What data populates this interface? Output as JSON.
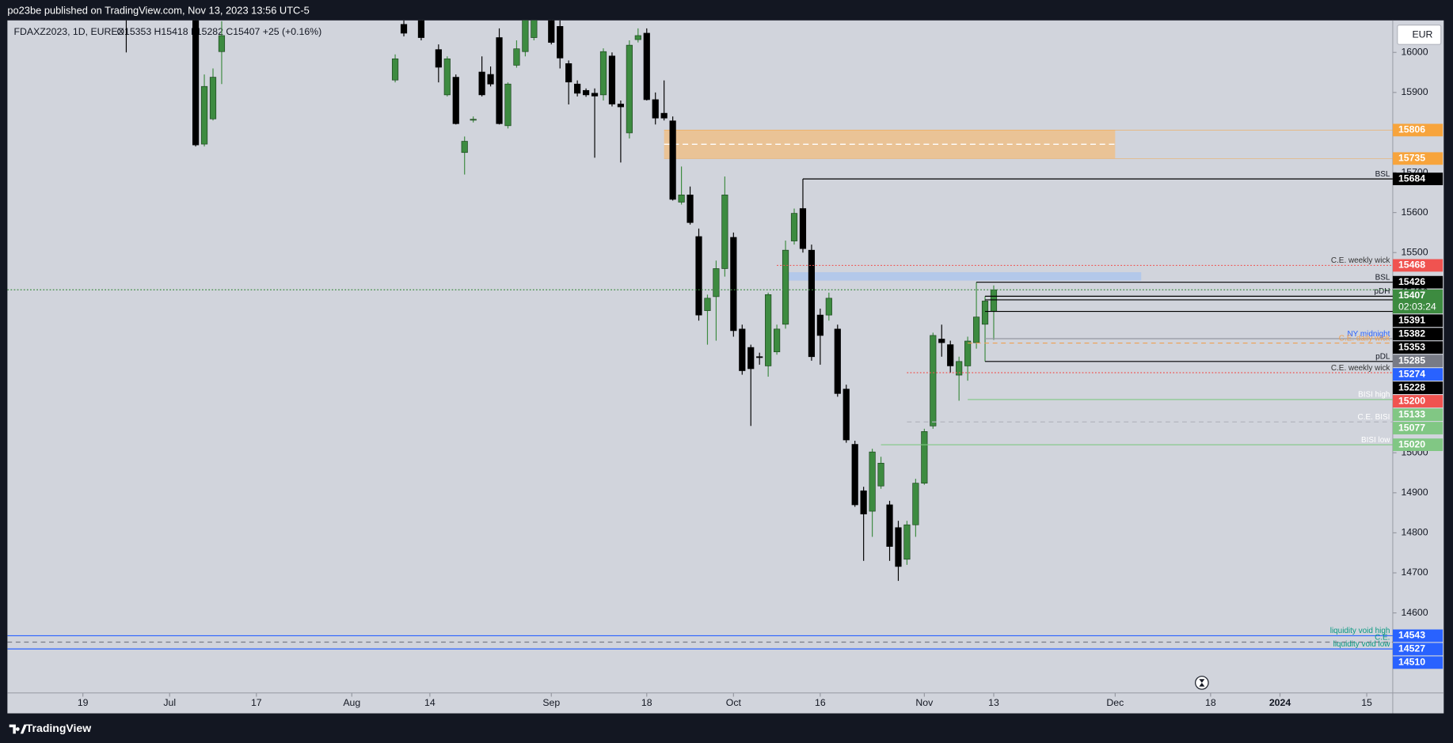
{
  "header": "po23be published on TradingView.com, Nov 13, 2023 13:56 UTC-5",
  "footer": "TradingView",
  "chart_data": {
    "type": "candlestick",
    "legend": {
      "symbol": "FDAXZ2023, 1D, EUREX",
      "ohlc": "O15353 H15418 L15282 C15407 +25 (+0.16%)"
    },
    "currency": "EUR",
    "up_color": "#3d8b40",
    "down_color": "#000000",
    "ylim": [
      14400,
      16080
    ],
    "yticks": [
      14600,
      14700,
      14800,
      14900,
      15000,
      15100,
      15200,
      15300,
      15400,
      15500,
      15600,
      15700,
      15800,
      15900,
      16000
    ],
    "xlim": [
      -13.7,
      146
    ],
    "xticks": [
      {
        "value": -5,
        "label": "19"
      },
      {
        "value": 5,
        "label": "Jul"
      },
      {
        "value": 15,
        "label": "17"
      },
      {
        "value": 26,
        "label": "Aug"
      },
      {
        "value": 35,
        "label": "14"
      },
      {
        "value": 49,
        "label": "Sep"
      },
      {
        "value": 60,
        "label": "18"
      },
      {
        "value": 70,
        "label": "Oct"
      },
      {
        "value": 80,
        "label": "16"
      },
      {
        "value": 92,
        "label": "Nov"
      },
      {
        "value": 100,
        "label": "13"
      },
      {
        "value": 114,
        "label": "Dec"
      },
      {
        "value": 125,
        "label": "18"
      },
      {
        "value": 133,
        "label": "2024"
      },
      {
        "value": 143,
        "label": "15"
      }
    ],
    "candles": {
      "x": [
        0,
        8,
        9,
        10,
        11,
        31,
        32,
        34,
        36,
        37,
        38,
        39,
        40,
        41,
        42,
        43,
        44,
        45,
        46,
        47,
        49,
        50,
        51,
        52,
        53,
        54,
        55,
        56,
        57,
        58,
        59,
        60,
        61,
        62,
        63,
        64,
        65,
        66,
        67,
        68,
        69,
        70,
        71,
        72,
        73,
        74,
        75,
        76,
        77,
        78,
        79,
        80,
        81,
        82,
        83,
        84,
        85,
        86,
        87,
        88,
        89,
        90,
        91,
        92,
        93,
        94,
        95,
        96,
        97,
        98,
        99,
        100
      ],
      "open": [
        16120,
        16080,
        15771,
        15834,
        16002,
        15931,
        16070,
        16090,
        16007,
        15894,
        15938,
        15750,
        15831,
        15951,
        15945,
        16037,
        15817,
        15968,
        16002,
        16037,
        16090,
        16065,
        15972,
        15921,
        15905,
        15898,
        15894,
        15991,
        15871,
        15799,
        16032,
        16048,
        15882,
        15848,
        15829,
        15626,
        15644,
        15540,
        15355,
        15390,
        15460,
        15538,
        15309,
        15263,
        15240,
        15217,
        15252,
        15321,
        15529,
        15610,
        15506,
        15344,
        15344,
        15309,
        15159,
        15021,
        14905,
        14854,
        14917,
        14870,
        14813,
        14734,
        14820,
        14924,
        15067,
        15284,
        15270,
        15194,
        15217,
        15275,
        15321,
        15353
      ],
      "high": [
        16180,
        16100,
        15945,
        15960,
        16078,
        15995,
        16080,
        16100,
        16020,
        15990,
        15945,
        15790,
        15840,
        15990,
        15965,
        16060,
        15925,
        16030,
        16100,
        16110,
        16110,
        16080,
        15980,
        15930,
        15910,
        15910,
        16010,
        16000,
        15880,
        16030,
        16060,
        16060,
        15900,
        15930,
        15840,
        15715,
        15665,
        15560,
        15395,
        15480,
        15690,
        15550,
        15320,
        15270,
        15250,
        15400,
        15320,
        15530,
        15610,
        15684,
        15520,
        15360,
        15400,
        15320,
        15170,
        15030,
        14915,
        15010,
        14990,
        14880,
        14830,
        14830,
        14935,
        15060,
        15300,
        15320,
        15280,
        15240,
        15290,
        15426,
        15391,
        15418
      ],
      "low": [
        16000,
        15765,
        15765,
        15830,
        15921,
        15925,
        16040,
        16030,
        15925,
        15890,
        15820,
        15695,
        15825,
        15890,
        15915,
        15820,
        15810,
        15962,
        15990,
        16030,
        16020,
        15960,
        15870,
        15890,
        15889,
        15737,
        15880,
        15865,
        15725,
        15785,
        16025,
        15880,
        15820,
        15830,
        15630,
        15620,
        15570,
        15330,
        15270,
        15280,
        15440,
        15290,
        15195,
        15067,
        15220,
        15190,
        15245,
        15310,
        15520,
        15500,
        15230,
        15220,
        15330,
        15140,
        15025,
        14865,
        14730,
        14790,
        14910,
        14730,
        14680,
        14720,
        14790,
        14920,
        15060,
        15240,
        15200,
        15130,
        15180,
        15260,
        15228,
        15282
      ],
      "close": [
        16100,
        15769,
        15915,
        15938,
        16042,
        15984,
        16048,
        16037,
        15963,
        15984,
        15822,
        15778,
        15833,
        15894,
        15921,
        15822,
        15921,
        16009,
        16085,
        16095,
        16025,
        15986,
        15926,
        15898,
        15894,
        15891,
        16002,
        15871,
        15864,
        16018,
        16042,
        15882,
        15836,
        15836,
        15633,
        15644,
        15575,
        15344,
        15386,
        15460,
        15644,
        15305,
        15205,
        15210,
        15238,
        15395,
        15309,
        15506,
        15598,
        15510,
        15240,
        15293,
        15386,
        15148,
        15032,
        14870,
        14847,
        15002,
        14974,
        14766,
        14716,
        14820,
        14924,
        15053,
        15293,
        15275,
        15217,
        15228,
        15279,
        15339,
        15379,
        15407
      ]
    },
    "last_price": {
      "value": 15407,
      "countdown": "02:03:24",
      "color": "#3d8b40"
    },
    "zones": [
      {
        "from": 15735,
        "to": 15806,
        "start": 62,
        "end": 114,
        "color": "#efbf8a",
        "box_color": "#f7a43c"
      },
      {
        "from": 15430,
        "to": 15451,
        "start": 76,
        "end": 117,
        "color": "#aec6ec"
      }
    ],
    "levels": [
      {
        "value": 15684,
        "label": "BSL",
        "start": 78,
        "style": "solid",
        "line_color": "#000000",
        "box_color": "#000000",
        "text_color": "#131722"
      },
      {
        "value": 15468,
        "label": "C.E. weekly wick",
        "start": 75,
        "style": "dotted",
        "line_color": "#f05350",
        "box_color": "#f05350",
        "text_color": "#333333"
      },
      {
        "value": 15426,
        "label": "BSL",
        "start": 98,
        "style": "solid",
        "line_color": "#000000",
        "box_color": "#000000",
        "text_color": "#131722"
      },
      {
        "value": 15391,
        "label": "pDH",
        "start": 99,
        "style": "solid",
        "line_color": "#000000",
        "box_color": "#000000",
        "text_color": "#131722"
      },
      {
        "value": 15382,
        "start": 99,
        "style": "solid",
        "line_color": "#000000",
        "box_color": "#000000"
      },
      {
        "value": 15353,
        "start": 99,
        "style": "solid",
        "line_color": "#000000",
        "box_color": "#000000"
      },
      {
        "value": 15285,
        "label": "NY midnight",
        "start": 99,
        "style": "solid",
        "line_color": "#9598a1",
        "box_color": "#787b86",
        "text_color": "#2962ff"
      },
      {
        "value": 15274,
        "label": "C.E. daily wick",
        "start": 97,
        "style": "dashed",
        "line_color": "#f0a050",
        "box_color": "#2962ff",
        "text_color": "#f0a050"
      },
      {
        "value": 15228,
        "label": "pDL",
        "start": 99,
        "style": "solid",
        "line_color": "#000000",
        "box_color": "#000000",
        "text_color": "#131722"
      },
      {
        "value": 15200,
        "label": "C.E. weekly wick",
        "start": 90,
        "style": "dotted",
        "line_color": "#f05350",
        "box_color": "#f05350",
        "text_color": "#333333"
      },
      {
        "value": 15133,
        "label": "BISI high",
        "start": 97,
        "style": "solid",
        "line_color": "#81c784",
        "box_color": "#81c784",
        "text_color": "#ffffff"
      },
      {
        "value": 15077,
        "label": "C.E. BISI",
        "start": 90,
        "style": "dashed",
        "line_color": "#b2b5be",
        "box_color": "#81c784",
        "text_color": "#ffffff"
      },
      {
        "value": 15020,
        "label": "BISI low",
        "start": 87,
        "style": "solid",
        "line_color": "#81c784",
        "box_color": "#81c784",
        "text_color": "#ffffff"
      },
      {
        "value": 14543,
        "label": "liquidity void high",
        "style": "solid",
        "line_color": "#2962ff",
        "box_color": "#2962ff",
        "text_color": "#089981"
      },
      {
        "value": 14527,
        "label": "C.E.",
        "style": "dashed",
        "line_color": "#787b86",
        "box_color": "#2962ff",
        "text_color": "#089981"
      },
      {
        "value": 14510,
        "label": "liquidity void low",
        "style": "solid",
        "line_color": "#2962ff",
        "box_color": "#2962ff",
        "text_color": "#089981"
      }
    ]
  }
}
